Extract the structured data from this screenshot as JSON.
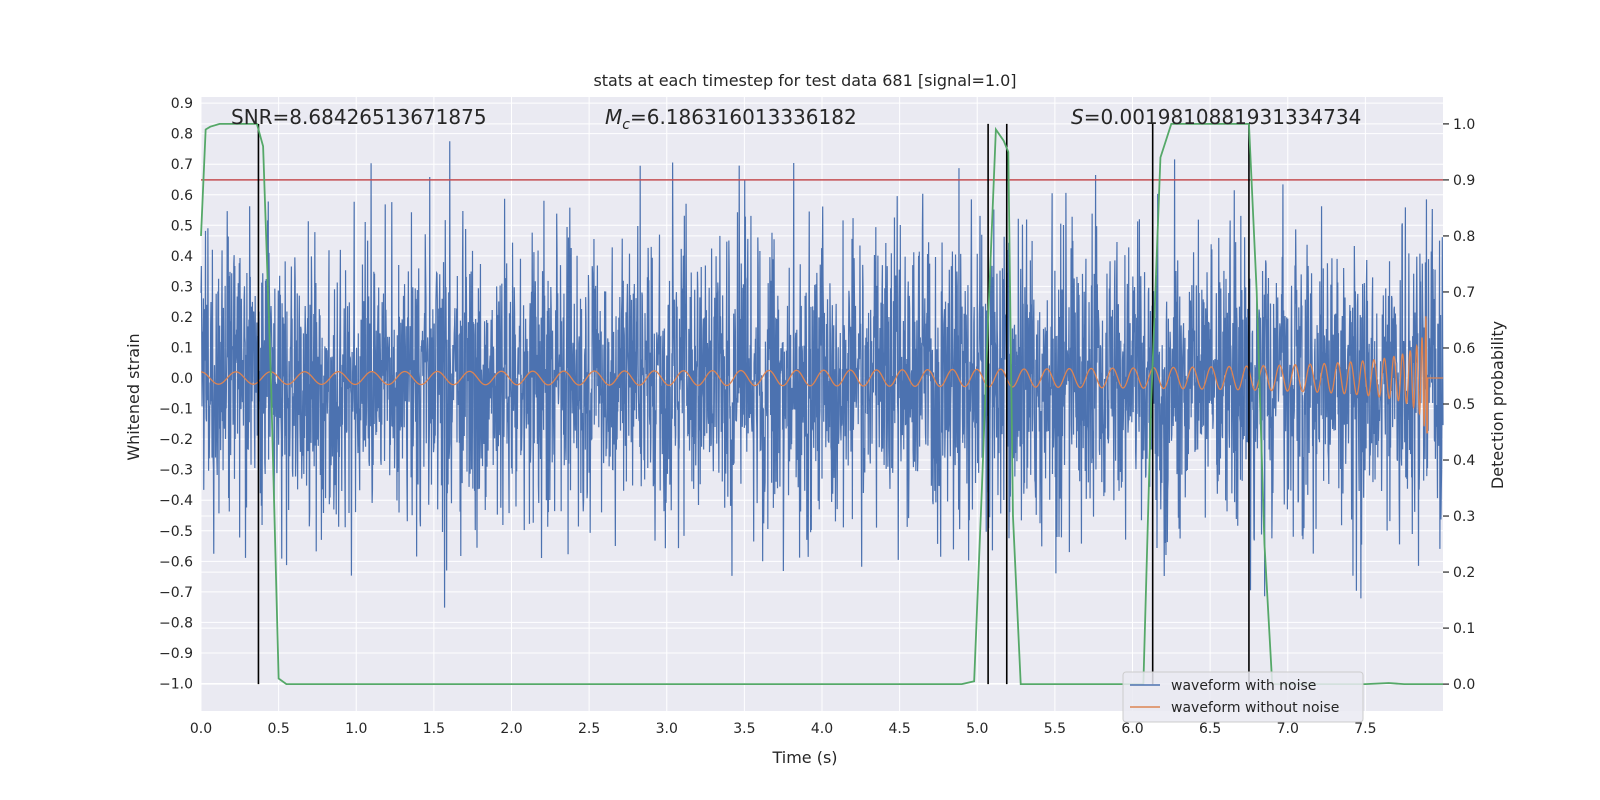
{
  "chart_data": {
    "type": "line",
    "title": "stats at each timestep for test data 681 [signal=1.0]",
    "xlabel": "Time (s)",
    "ylabel": "Whitened strain",
    "y2label": "Detection probability",
    "xlim": [
      0.0,
      8.0
    ],
    "ylim": [
      -1.09,
      0.92
    ],
    "y2lim": [
      -0.048,
      1.048
    ],
    "x_ticks": [
      "0.0",
      "0.5",
      "1.0",
      "1.5",
      "2.0",
      "2.5",
      "3.0",
      "3.5",
      "4.0",
      "4.5",
      "5.0",
      "5.5",
      "6.0",
      "6.5",
      "7.0",
      "7.5"
    ],
    "y_ticks": [
      "0.9",
      "0.8",
      "0.7",
      "0.6",
      "0.5",
      "0.4",
      "0.3",
      "0.2",
      "0.1",
      "0.0",
      "−0.1",
      "−0.2",
      "−0.3",
      "−0.4",
      "−0.5",
      "−0.6",
      "−0.7",
      "−0.8",
      "−0.9",
      "−1.0"
    ],
    "y2_ticks": [
      "1.0",
      "0.9",
      "0.8",
      "0.7",
      "0.6",
      "0.5",
      "0.4",
      "0.3",
      "0.2",
      "0.1",
      "0.0"
    ],
    "annotations": {
      "snr": "SNR=8.68426513671875",
      "mc_symbol": "M",
      "mc_sub": "c",
      "mc_value": "=6.186316013336182",
      "s_symbol": "S",
      "s_value": "=0.0019810881931334734"
    },
    "legend": {
      "position": "lower-right",
      "entries": [
        "waveform with noise",
        "waveform without noise"
      ]
    },
    "colors": {
      "noise": "#4c72b0",
      "clean": "#dd8452",
      "probability": "#55a868",
      "threshold": "#c44e52",
      "vlines": "#000000",
      "background": "#eaeaf2",
      "grid": "#ffffff"
    },
    "series": [
      {
        "name": "waveform with noise",
        "description_amplitude": "noise peaks roughly between -0.8 and 0.8 strain"
      },
      {
        "name": "waveform without noise",
        "chirp": {
          "start_amp": 0.02,
          "end_amp": 0.21,
          "merger_time": 7.9
        }
      },
      {
        "name": "detection probability",
        "x": [
          0.0,
          0.03,
          0.06,
          0.12,
          0.2,
          0.3,
          0.36,
          0.4,
          0.45,
          0.5,
          0.55,
          0.6,
          1.0,
          2.0,
          3.0,
          4.0,
          4.9,
          4.98,
          5.03,
          5.07,
          5.12,
          5.17,
          5.2,
          5.23,
          5.28,
          5.35,
          5.5,
          5.8,
          6.0,
          6.07,
          6.12,
          6.18,
          6.25,
          6.4,
          6.6,
          6.7,
          6.75,
          6.8,
          6.85,
          6.9,
          7.0,
          7.5,
          7.65,
          7.75,
          8.0
        ],
        "y": [
          0.8,
          0.99,
          0.995,
          1.0,
          1.0,
          1.0,
          1.0,
          0.96,
          0.55,
          0.01,
          0.0,
          0.0,
          0.0,
          0.0,
          0.0,
          0.0,
          0.0,
          0.005,
          0.35,
          0.65,
          0.99,
          0.97,
          0.95,
          0.3,
          0.0,
          0.0,
          0.0,
          0.0,
          0.0,
          0.0,
          0.5,
          0.94,
          1.0,
          1.0,
          1.0,
          1.0,
          1.0,
          0.7,
          0.25,
          0.0,
          0.0,
          0.0,
          0.002,
          0.0,
          0.0
        ]
      }
    ],
    "threshold_probability": 0.9,
    "vertical_lines_time": [
      0.37,
      5.07,
      5.19,
      6.13,
      6.75
    ]
  }
}
